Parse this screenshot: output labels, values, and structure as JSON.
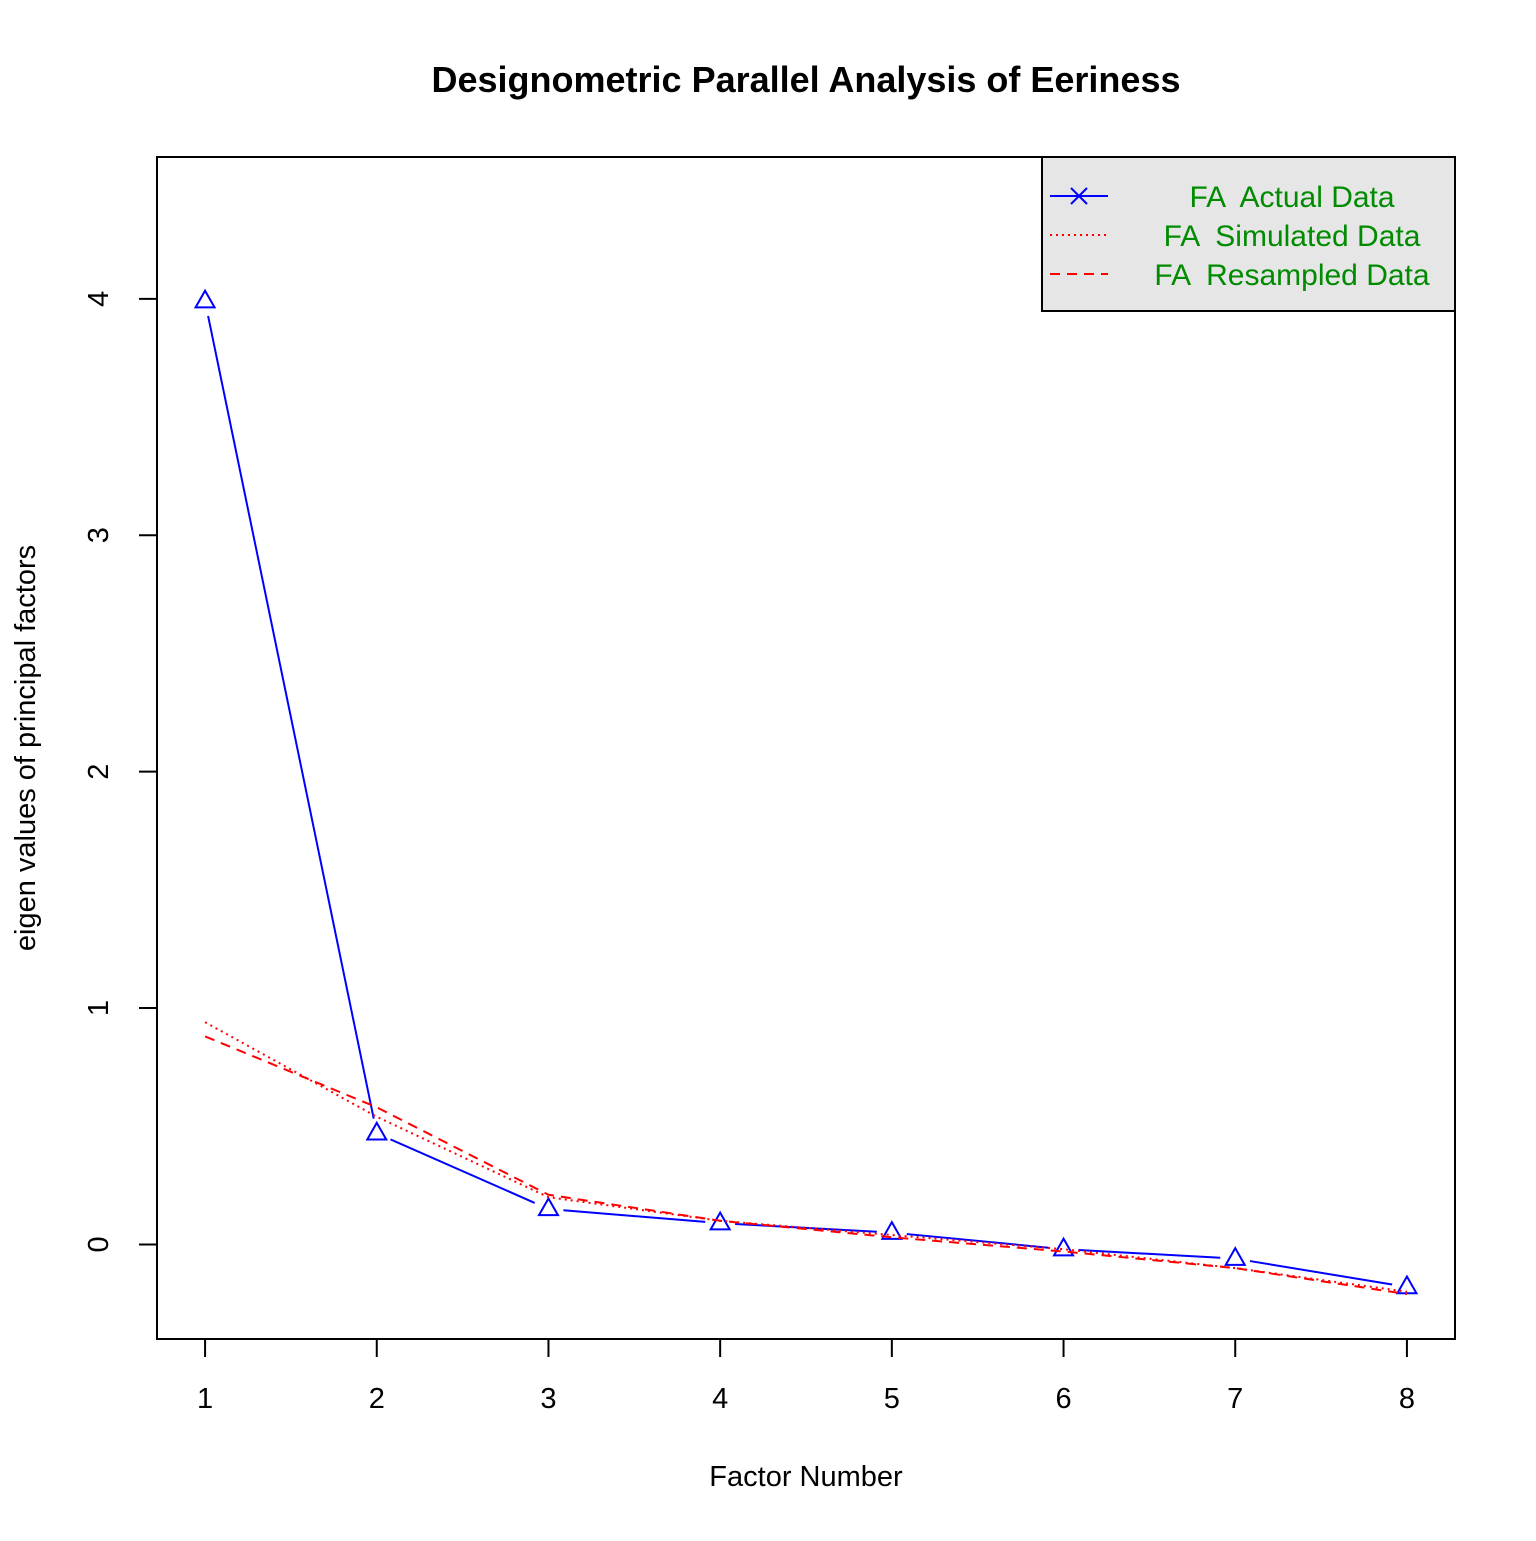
{
  "chart_data": {
    "type": "line",
    "title": "Designometric Parallel Analysis of Eeriness",
    "xlabel": "Factor Number",
    "ylabel": "eigen values of principal factors",
    "xlim": [
      0.72,
      8.28
    ],
    "ylim": [
      -0.4,
      4.6
    ],
    "x_ticks": [
      1,
      2,
      3,
      4,
      5,
      6,
      7,
      8
    ],
    "x_tick_labels": [
      "1",
      "2",
      "3",
      "4",
      "5",
      "6",
      "7",
      "8"
    ],
    "y_ticks": [
      0,
      1,
      2,
      3,
      4
    ],
    "y_tick_labels": [
      "0",
      "1",
      "2",
      "3",
      "4"
    ],
    "grid": false,
    "x": [
      1,
      2,
      3,
      4,
      5,
      6,
      7,
      8
    ],
    "series": [
      {
        "name": "FA  Actual Data",
        "color": "#0000ff",
        "line_style": "solid",
        "marker": "triangle",
        "values": [
          3.99,
          0.47,
          0.15,
          0.09,
          0.05,
          -0.02,
          -0.06,
          -0.18
        ]
      },
      {
        "name": "FA  Simulated Data",
        "color": "#ff0000",
        "line_style": "dotted",
        "marker": "none",
        "values": [
          0.94,
          0.54,
          0.2,
          0.1,
          0.04,
          -0.02,
          -0.1,
          -0.2
        ]
      },
      {
        "name": "FA  Resampled Data",
        "color": "#ff0000",
        "line_style": "dashed",
        "marker": "none",
        "values": [
          0.88,
          0.58,
          0.21,
          0.1,
          0.03,
          -0.03,
          -0.1,
          -0.21
        ]
      }
    ],
    "legend": {
      "placement": "top-right",
      "background": "#e6e6e6",
      "text_color": "#008b00",
      "entries": [
        {
          "label": "FA  Actual Data",
          "color": "#0000ff",
          "line_style": "solid",
          "symbol": "x"
        },
        {
          "label": "FA  Simulated Data",
          "color": "#ff0000",
          "line_style": "dotted",
          "symbol": "none"
        },
        {
          "label": "FA  Resampled Data",
          "color": "#ff0000",
          "line_style": "dashed",
          "symbol": "none"
        }
      ]
    }
  }
}
